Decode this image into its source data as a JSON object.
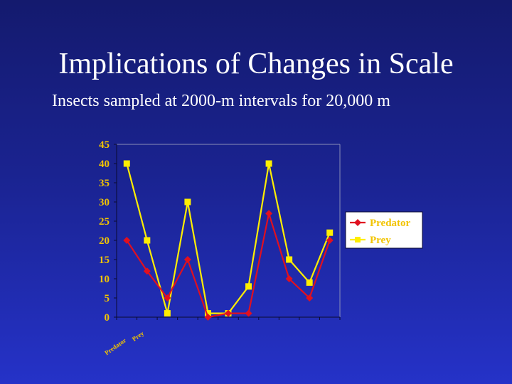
{
  "slide": {
    "title": "Implications of Changes in Scale",
    "subtitle": "Insects sampled at 2000-m intervals for 20,000 m"
  },
  "colors": {
    "background_top": "#141a6e",
    "background_bottom": "#2532c8",
    "axis_text": "#f2c400",
    "predator": "#e01020",
    "prey": "#ffee00",
    "legend_bg": "#ffffff"
  },
  "chart_data": {
    "type": "line",
    "title": "",
    "xlabel": "",
    "ylabel": "",
    "x_tick_labels": [
      "Predator",
      "Prey"
    ],
    "ylim": [
      0,
      45
    ],
    "y_ticks": [
      0,
      5,
      10,
      15,
      20,
      25,
      30,
      35,
      40,
      45
    ],
    "grid": false,
    "legend_position": "right",
    "series": [
      {
        "name": "Predator",
        "marker": "diamond",
        "values": [
          20,
          12,
          5,
          15,
          0,
          1,
          1,
          27,
          10,
          5,
          20
        ]
      },
      {
        "name": "Prey",
        "marker": "square",
        "values": [
          40,
          20,
          1,
          30,
          1,
          1,
          8,
          40,
          15,
          9,
          22
        ]
      }
    ]
  }
}
